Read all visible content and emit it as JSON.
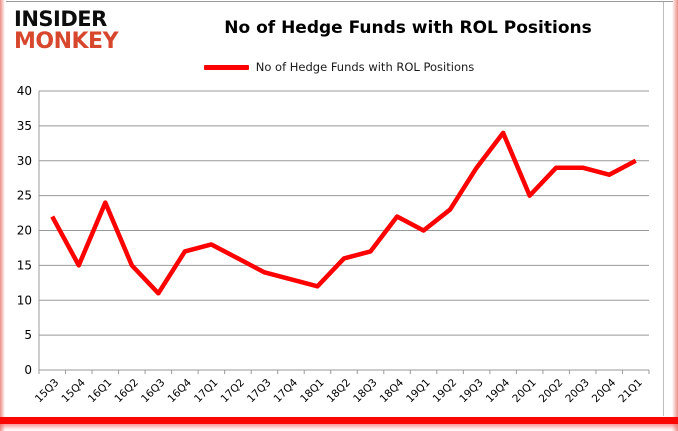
{
  "logo": {
    "line1": "INSIDER",
    "line2": "MONKEY"
  },
  "header": {
    "title": "No of Hedge Funds with ROL Positions"
  },
  "legend": {
    "label": "No of Hedge Funds with ROL Positions"
  },
  "colors": {
    "accent_red": "#fe0000",
    "logo_red": "#d7472d",
    "bottom_bar": "#fb0703",
    "edge_pink": "#ec8d86"
  },
  "chart_data": {
    "type": "line",
    "title": "No of Hedge Funds with ROL Positions",
    "categories": [
      "15Q3",
      "15Q4",
      "16Q1",
      "16Q2",
      "16Q3",
      "16Q4",
      "17Q1",
      "17Q2",
      "17Q3",
      "17Q4",
      "18Q1",
      "18Q2",
      "18Q3",
      "18Q4",
      "19Q1",
      "19Q2",
      "19Q3",
      "19Q4",
      "20Q1",
      "20Q2",
      "20Q3",
      "20Q4",
      "21Q1"
    ],
    "values": [
      22,
      15,
      24,
      15,
      11,
      17,
      18,
      16,
      14,
      13,
      12,
      16,
      17,
      22,
      20,
      23,
      29,
      34,
      25,
      29,
      29,
      28,
      30
    ],
    "series_name": "No of Hedge Funds with ROL Positions",
    "series_color": "#fe0000",
    "xlabel": "",
    "ylabel": "",
    "ylim": [
      0,
      40
    ],
    "ytick_step": 5,
    "grid": true,
    "grid_color": "#999999",
    "axis_color": "#999999",
    "legend_position": "top"
  }
}
